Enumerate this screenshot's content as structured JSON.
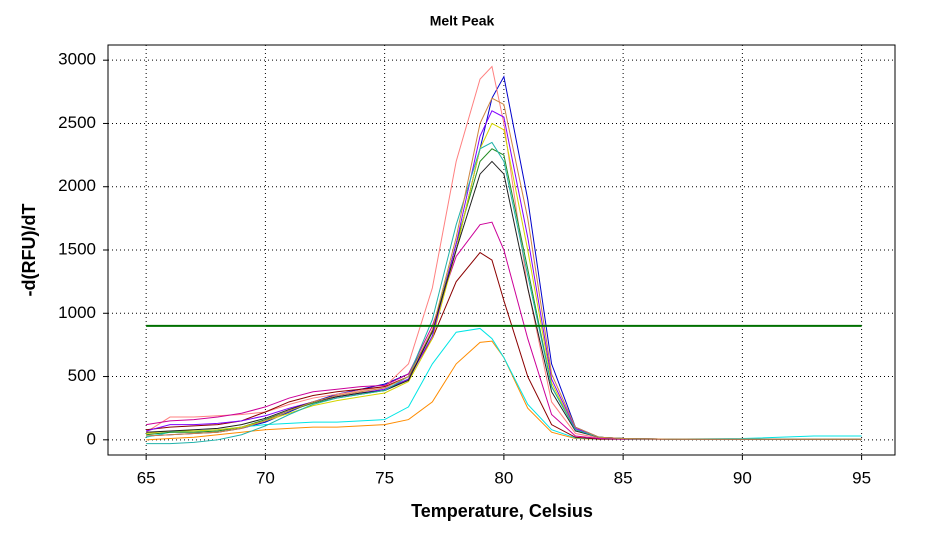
{
  "chart_data": {
    "type": "line",
    "title": "Melt Peak",
    "x_label": "Temperature, Celsius",
    "y_label": "-d(RFU)/dT",
    "x": [
      65,
      66,
      67,
      68,
      69,
      70,
      71,
      72,
      73,
      74,
      75,
      76,
      77,
      78,
      79,
      79.5,
      80,
      81,
      82,
      83,
      84,
      85,
      87,
      90,
      93,
      95
    ],
    "series": [
      {
        "color": "#0000cc",
        "values": [
          30,
          40,
          50,
          60,
          90,
          140,
          220,
          300,
          360,
          400,
          440,
          520,
          850,
          1500,
          2300,
          2700,
          2870,
          1900,
          600,
          100,
          20,
          10,
          5,
          5,
          5,
          5
        ]
      },
      {
        "color": "#ff8080",
        "values": [
          60,
          180,
          180,
          190,
          200,
          220,
          280,
          330,
          360,
          390,
          420,
          600,
          1200,
          2200,
          2850,
          2950,
          2500,
          1200,
          300,
          50,
          15,
          10,
          5,
          5,
          5,
          5
        ]
      },
      {
        "color": "#ff8c00",
        "values": [
          0,
          10,
          20,
          40,
          60,
          80,
          90,
          100,
          100,
          110,
          120,
          160,
          300,
          600,
          770,
          780,
          650,
          250,
          60,
          10,
          5,
          5,
          5,
          5,
          5,
          5
        ]
      },
      {
        "color": "#00e5e5",
        "values": [
          20,
          60,
          70,
          80,
          100,
          120,
          130,
          140,
          140,
          150,
          160,
          260,
          600,
          850,
          880,
          800,
          650,
          280,
          80,
          15,
          5,
          5,
          5,
          10,
          30,
          30
        ]
      },
      {
        "color": "#8b0000",
        "values": [
          80,
          100,
          110,
          120,
          150,
          220,
          300,
          350,
          380,
          400,
          420,
          500,
          800,
          1250,
          1480,
          1420,
          1100,
          500,
          120,
          20,
          5,
          5,
          5,
          5,
          5,
          5
        ]
      },
      {
        "color": "#cc0099",
        "values": [
          120,
          150,
          160,
          180,
          210,
          260,
          330,
          380,
          400,
          420,
          430,
          520,
          900,
          1450,
          1700,
          1720,
          1500,
          800,
          200,
          30,
          10,
          5,
          5,
          5,
          5,
          5
        ]
      },
      {
        "color": "#228b22",
        "values": [
          40,
          60,
          60,
          70,
          100,
          160,
          230,
          290,
          330,
          360,
          390,
          480,
          850,
          1550,
          2200,
          2300,
          2250,
          1350,
          420,
          80,
          20,
          10,
          5,
          5,
          5,
          5
        ]
      },
      {
        "color": "#d4d400",
        "values": [
          50,
          70,
          70,
          80,
          100,
          150,
          210,
          270,
          310,
          340,
          370,
          460,
          800,
          1500,
          2300,
          2500,
          2450,
          1500,
          450,
          80,
          20,
          10,
          5,
          5,
          5,
          5
        ]
      },
      {
        "color": "#8000ff",
        "values": [
          70,
          120,
          120,
          130,
          150,
          190,
          250,
          300,
          340,
          370,
          400,
          480,
          820,
          1550,
          2400,
          2600,
          2550,
          1600,
          480,
          90,
          20,
          10,
          5,
          5,
          5,
          5
        ]
      },
      {
        "color": "#202020",
        "values": [
          60,
          70,
          80,
          90,
          120,
          170,
          240,
          300,
          340,
          370,
          390,
          470,
          860,
          1500,
          2100,
          2200,
          2100,
          1200,
          380,
          70,
          20,
          10,
          5,
          5,
          5,
          5
        ]
      },
      {
        "color": "#20b2aa",
        "values": [
          -30,
          -30,
          -20,
          0,
          40,
          110,
          200,
          280,
          330,
          360,
          390,
          500,
          950,
          1700,
          2300,
          2350,
          2200,
          1300,
          420,
          80,
          20,
          10,
          5,
          5,
          5,
          5
        ]
      },
      {
        "color": "#cd853f",
        "values": [
          30,
          40,
          50,
          60,
          90,
          150,
          230,
          300,
          350,
          380,
          410,
          500,
          870,
          1600,
          2500,
          2700,
          2650,
          1750,
          520,
          100,
          20,
          10,
          5,
          5,
          5,
          5
        ]
      }
    ],
    "threshold": {
      "value": 900,
      "color": "#007000"
    },
    "xlim": [
      63.4,
      96.4
    ],
    "ylim": [
      -120,
      3120
    ],
    "xticks": [
      65,
      70,
      75,
      80,
      85,
      90,
      95
    ],
    "yticks": [
      0,
      500,
      1000,
      1500,
      2000,
      2500,
      3000
    ],
    "grid": true
  }
}
